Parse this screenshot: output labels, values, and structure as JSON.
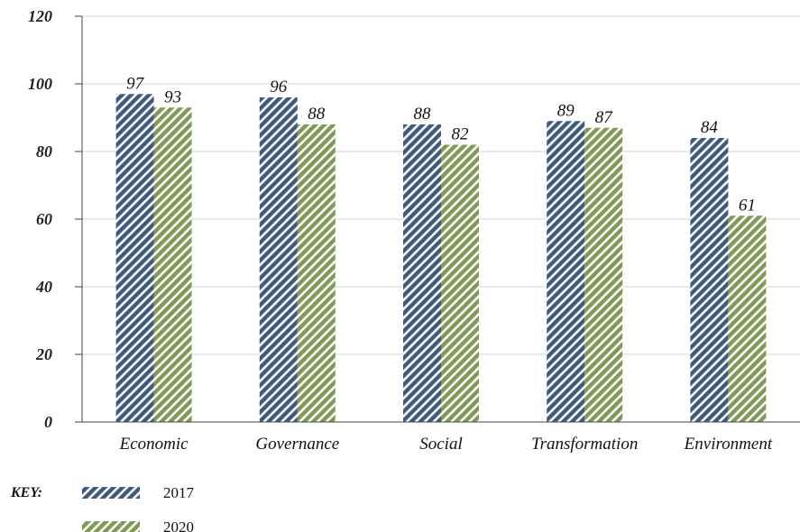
{
  "chart_data": {
    "type": "bar",
    "categories": [
      "Economic",
      "Governance",
      "Social",
      "Transformation",
      "Environment"
    ],
    "series": [
      {
        "name": "2017",
        "values": [
          97,
          96,
          88,
          89,
          84
        ],
        "color": "#3f5a80"
      },
      {
        "name": "2020",
        "values": [
          93,
          88,
          82,
          87,
          61
        ],
        "color": "#7f9a55"
      }
    ],
    "ylim": [
      0,
      120
    ],
    "yticks": [
      0,
      20,
      40,
      60,
      80,
      100,
      120
    ],
    "grid": true,
    "bar_pattern": "diagonal-hatch",
    "legend": {
      "title": "KEY:",
      "placement": "bottom-left"
    }
  }
}
